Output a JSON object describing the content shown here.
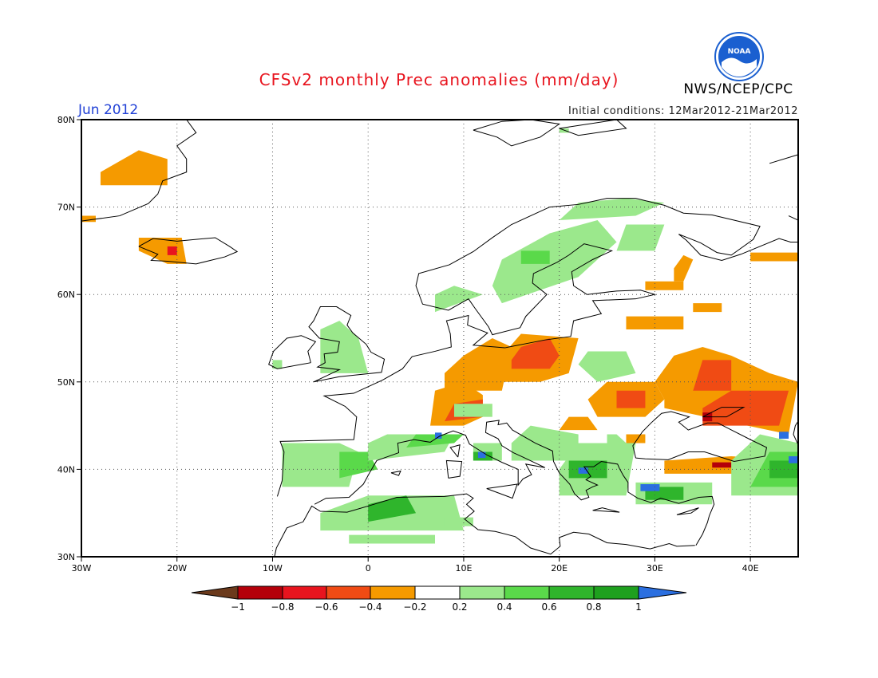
{
  "title": "CFSv2 monthly Prec anomalies (mm/day)",
  "valid_month": "Jun 2012",
  "initial_conditions": "Initial conditions: 12Mar2012-21Mar2012",
  "agency": "NWS/NCEP/CPC",
  "logo_text": "NOAA",
  "map": {
    "lon_range": [
      -30,
      45
    ],
    "lat_range": [
      30,
      80
    ],
    "lat_ticks": [
      "80N",
      "70N",
      "60N",
      "50N",
      "40N",
      "30N"
    ],
    "lon_ticks": [
      "30W",
      "20W",
      "10W",
      "0",
      "10E",
      "20E",
      "30E",
      "40E"
    ],
    "grid": "dotted",
    "colorbar": {
      "labels": [
        "-1",
        "-0.8",
        "-0.6",
        "-0.4",
        "-0.2",
        "0.2",
        "0.4",
        "0.6",
        "0.8",
        "1"
      ],
      "colors": [
        "#6b3a1c",
        "#b4000a",
        "#e8141e",
        "#f04b14",
        "#f59a00",
        "#ffffff",
        "#9be88c",
        "#5ad94a",
        "#2fb52c",
        "#1ea01e",
        "#2b6fe0"
      ]
    }
  },
  "colors": {
    "title": "#e8141e",
    "month": "#1f3fd6",
    "noaa_blue": "#1a5fd0"
  }
}
